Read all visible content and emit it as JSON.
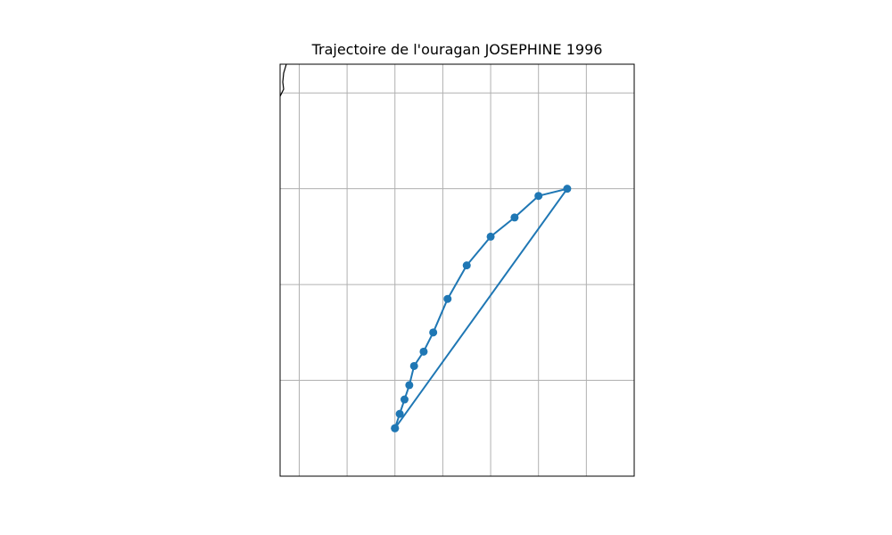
{
  "chart_data": {
    "type": "line",
    "title": "Trajectoire de l'ouragan JOSEPHINE 1996",
    "xlabel": "",
    "ylabel": "",
    "grid": true,
    "series": [
      {
        "values": [
          {
            "x": -83.0,
            "y": 21.0
          },
          {
            "x": -82.9,
            "y": 21.3
          },
          {
            "x": -82.8,
            "y": 21.6
          },
          {
            "x": -82.7,
            "y": 21.9
          },
          {
            "x": -82.6,
            "y": 22.3
          },
          {
            "x": -82.4,
            "y": 22.6
          },
          {
            "x": -82.2,
            "y": 23.0
          },
          {
            "x": -81.9,
            "y": 23.7
          },
          {
            "x": -81.5,
            "y": 24.4
          },
          {
            "x": -81.0,
            "y": 25.0
          },
          {
            "x": -80.5,
            "y": 25.4
          },
          {
            "x": -80.0,
            "y": 25.85
          },
          {
            "x": -79.4,
            "y": 26.0
          },
          {
            "x": -83.0,
            "y": 21.0
          }
        ]
      }
    ],
    "xlim": [
      -85.4,
      -78.0
    ],
    "ylim": [
      20.0,
      28.6
    ],
    "x_gridlines": [
      -85,
      -84,
      -83,
      -82,
      -81,
      -80,
      -79,
      -78
    ],
    "y_gridlines": [
      20,
      22,
      24,
      26,
      28
    ],
    "colors": {
      "line": "#1f77b4",
      "marker": "#1f77b4",
      "grid": "#b0b0b0",
      "axes": "#000000",
      "coast": "#000000"
    },
    "marker": "circle"
  }
}
